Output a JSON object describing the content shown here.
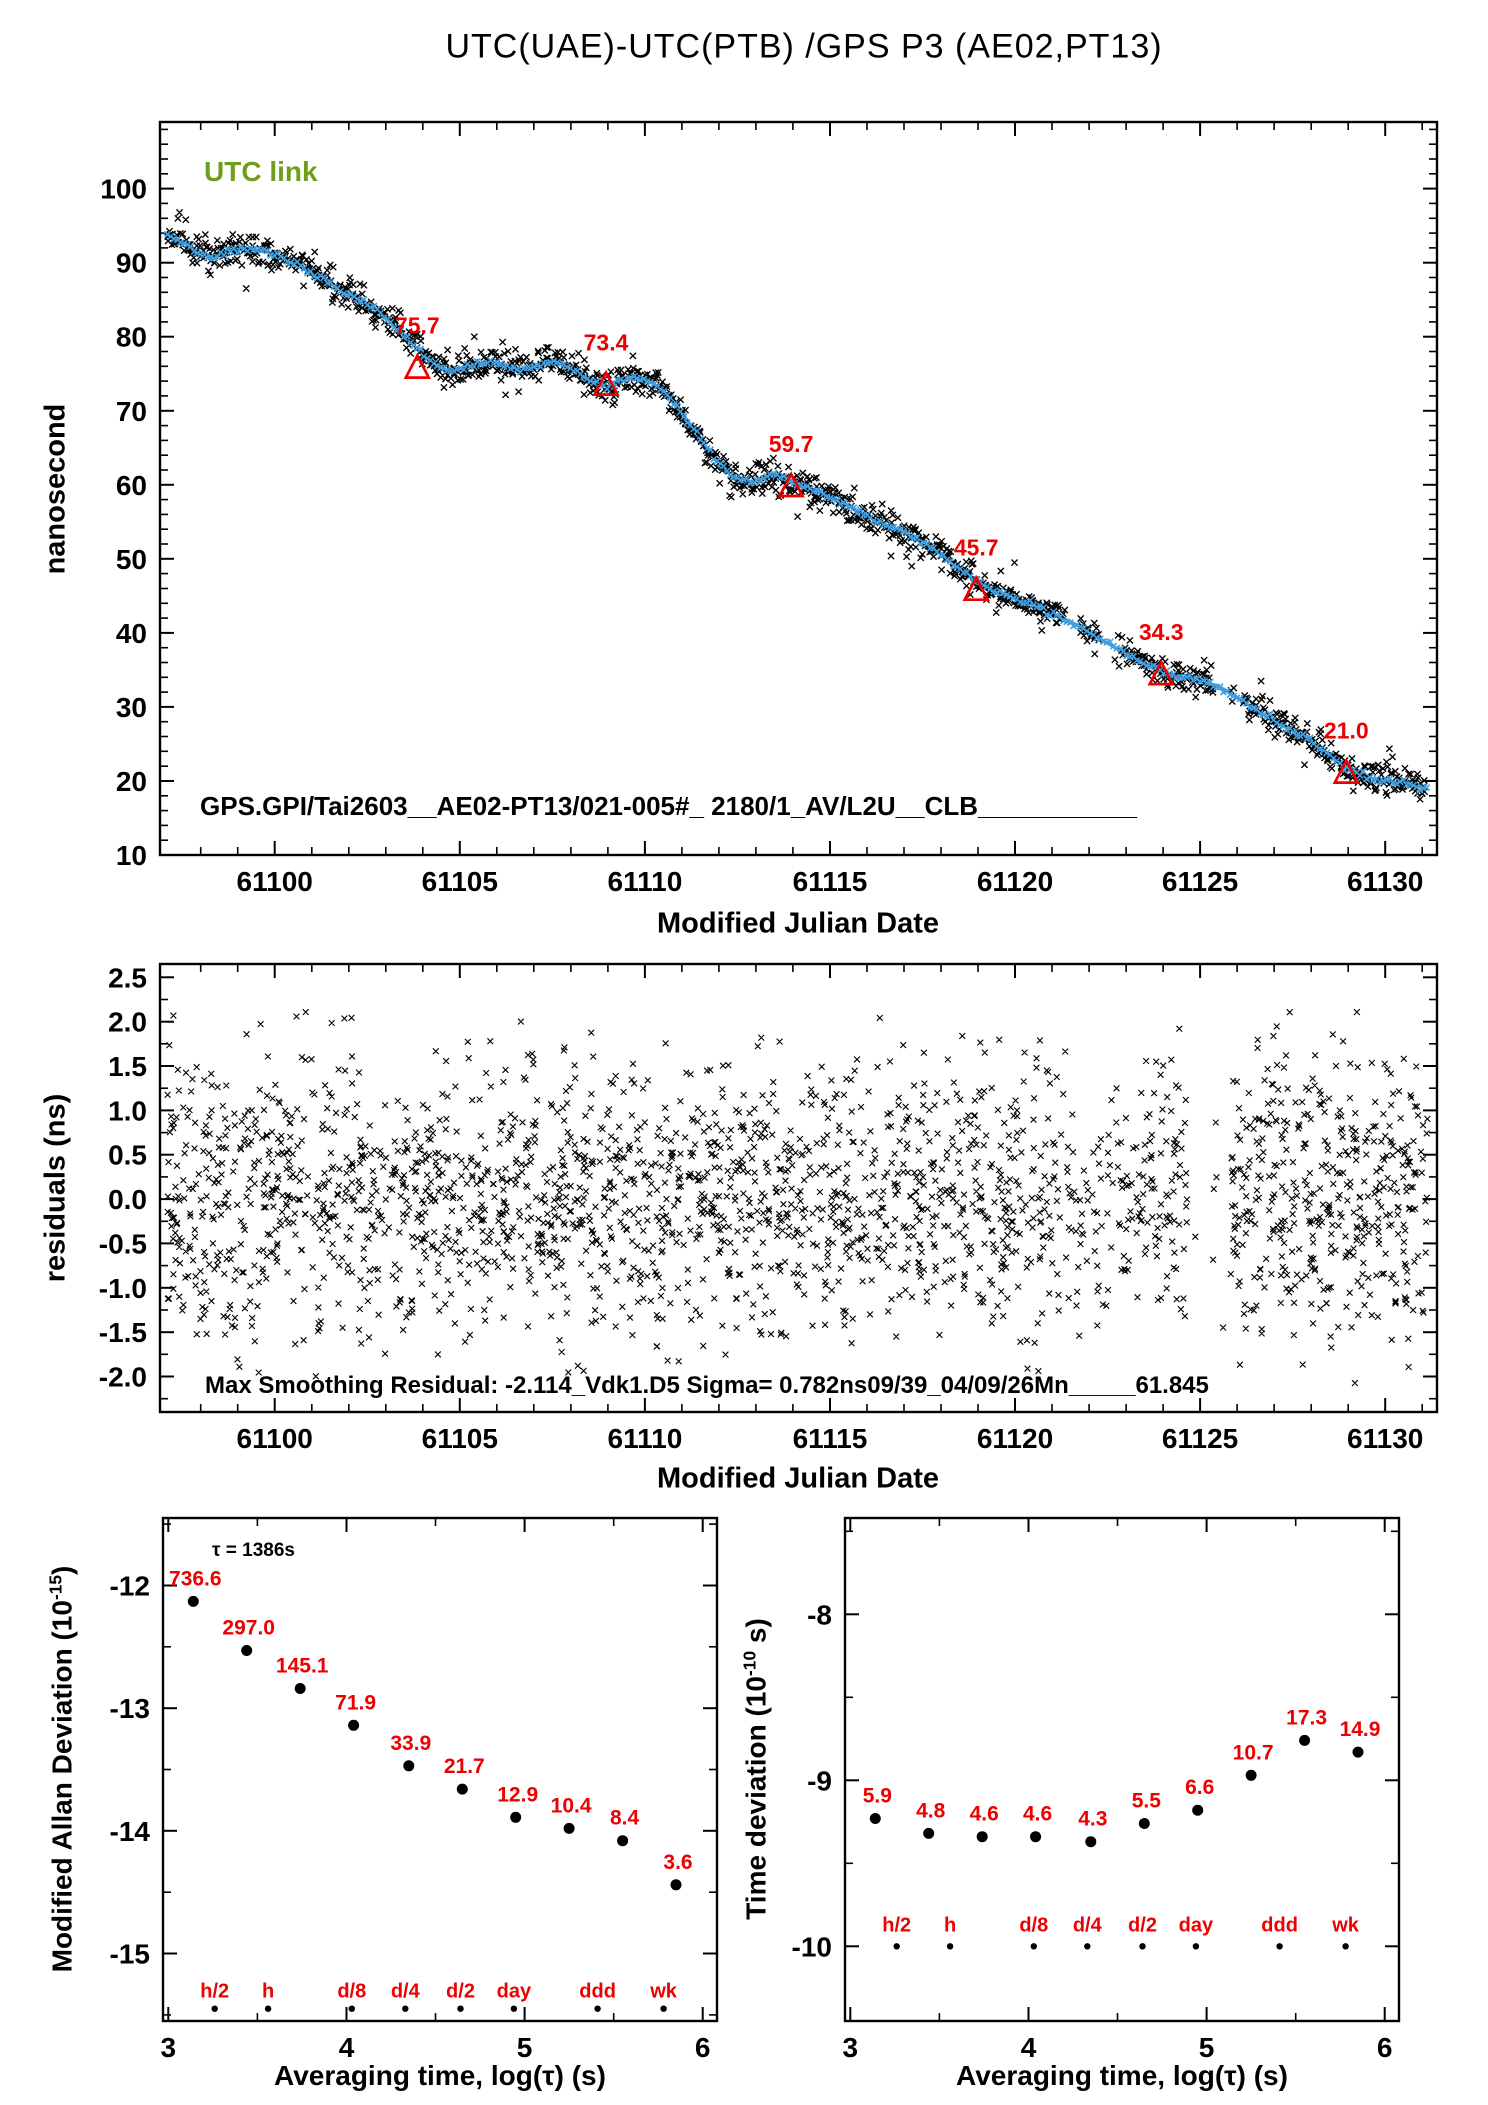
{
  "title": "UTC(UAE)-UTC(PTB)  /GPS  P3  (AE02,PT13)",
  "colors": {
    "background": "#ffffff",
    "axis_black": "#000000",
    "red": "#ee0000",
    "line_blue": "#3f9fe0",
    "utc_link_green": "#6f9d1c"
  },
  "chart_data": [
    {
      "id": "main",
      "type": "scatter",
      "title": "UTC(UAE)-UTC(PTB)  /GPS  P3  (AE02,PT13)",
      "legend_note": "UTC link",
      "footer": "GPS.GPI/Tai2603__AE02-PT13/021-005#_  2180/1_AV/L2U__CLB___________",
      "xlabel": "Modified Julian Date",
      "ylabel": "nanosecond",
      "xlim": [
        61096.9,
        61131.4
      ],
      "ylim": [
        10,
        109
      ],
      "grid": false,
      "xticks": [
        [
          61100,
          "61100"
        ],
        [
          61105,
          "61105"
        ],
        [
          61110,
          "61110"
        ],
        [
          61115,
          "61115"
        ],
        [
          61120,
          "61120"
        ],
        [
          61125,
          "61125"
        ],
        [
          61130,
          "61130"
        ]
      ],
      "yticks": [
        [
          10,
          "10"
        ],
        [
          20,
          "20"
        ],
        [
          30,
          "30"
        ],
        [
          40,
          "40"
        ],
        [
          50,
          "50"
        ],
        [
          60,
          "60"
        ],
        [
          70,
          "70"
        ],
        [
          80,
          "80"
        ],
        [
          90,
          "90"
        ],
        [
          100,
          "100"
        ]
      ],
      "smooth_x": [
        61097.0,
        61097.5,
        61098.0,
        61098.4,
        61098.8,
        61099.3,
        61099.8,
        61100.3,
        61100.8,
        61101.3,
        61101.8,
        61102.3,
        61102.8,
        61103.3,
        61103.8,
        61104.2,
        61104.6,
        61105.0,
        61105.4,
        61105.8,
        61106.2,
        61106.6,
        61107.0,
        61107.4,
        61107.8,
        61108.2,
        61108.6,
        61109.0,
        61109.4,
        61109.8,
        61110.2,
        61110.6,
        61111.0,
        61111.4,
        61111.8,
        61112.2,
        61112.6,
        61113.0,
        61113.4,
        61113.8,
        61114.2,
        61114.6,
        61115.0,
        61115.5,
        61116.0,
        61116.5,
        61117.0,
        61117.5,
        61118.0,
        61118.5,
        61119.0,
        61119.5,
        61120.0,
        61120.5,
        61121.0,
        61121.5,
        61122.0,
        61122.5,
        61123.0,
        61123.5,
        61124.0,
        61124.5,
        61125.0,
        61125.5,
        61126.0,
        61126.5,
        61127.0,
        61127.5,
        61128.0,
        61128.5,
        61129.0,
        61129.5,
        61130.0,
        61130.5,
        61131.0
      ],
      "smooth_y": [
        94.0,
        92.8,
        91.3,
        90.8,
        91.6,
        91.9,
        91.4,
        90.6,
        89.3,
        87.8,
        86.3,
        85.0,
        83.4,
        81.2,
        78.6,
        76.6,
        75.4,
        75.4,
        76.2,
        76.6,
        76.2,
        75.6,
        75.9,
        76.5,
        76.3,
        75.2,
        73.8,
        73.3,
        74.2,
        74.5,
        73.8,
        72.1,
        69.7,
        67.0,
        64.0,
        61.8,
        60.4,
        60.5,
        61.3,
        60.9,
        59.8,
        59.2,
        58.4,
        57.2,
        55.8,
        54.6,
        53.6,
        52.3,
        50.7,
        48.8,
        46.8,
        45.6,
        44.7,
        43.8,
        42.7,
        41.5,
        40.1,
        38.6,
        37.1,
        35.9,
        34.7,
        34.0,
        33.5,
        32.8,
        31.3,
        29.6,
        28.1,
        26.8,
        25.3,
        23.4,
        21.5,
        20.5,
        20.0,
        19.6,
        19.2
      ],
      "scatter_sigma_ns": 1.05,
      "sparse_zones": [
        [
          61121.2,
          61121.75
        ],
        [
          61122.3,
          61122.85
        ],
        [
          61125.35,
          61126.15
        ]
      ],
      "markers": [
        {
          "mjd": 61103.85,
          "ns": 75.7
        },
        {
          "mjd": 61108.95,
          "ns": 73.4
        },
        {
          "mjd": 61113.95,
          "ns": 59.7
        },
        {
          "mjd": 61118.95,
          "ns": 45.7
        },
        {
          "mjd": 61123.95,
          "ns": 34.3
        },
        {
          "mjd": 61128.95,
          "ns": 21.0
        }
      ]
    },
    {
      "id": "residuals",
      "type": "scatter",
      "footer": "Max Smoothing Residual: -2.114_Vdk1.D5  Sigma= 0.782ns09/39_04/09/26Mn_____61.845",
      "xlabel": "Modified Julian Date",
      "ylabel": "residuals (ns)",
      "xlim": [
        61096.9,
        61131.4
      ],
      "ylim": [
        -2.4,
        2.65
      ],
      "grid": false,
      "xticks": [
        [
          61100,
          "61100"
        ],
        [
          61105,
          "61105"
        ],
        [
          61110,
          "61110"
        ],
        [
          61115,
          "61115"
        ],
        [
          61120,
          "61120"
        ],
        [
          61125,
          "61125"
        ],
        [
          61130,
          "61130"
        ]
      ],
      "yticks": [
        [
          2.5,
          "2.5"
        ],
        [
          2,
          "2.0"
        ],
        [
          1.5,
          "1.5"
        ],
        [
          1,
          "1.0"
        ],
        [
          0.5,
          "0.5"
        ],
        [
          0,
          "0.0"
        ],
        [
          -0.5,
          "-0.5"
        ],
        [
          -1,
          "-1.0"
        ],
        [
          -1.5,
          "-1.5"
        ],
        [
          -2,
          "-2.0"
        ]
      ],
      "sigma_ns": 0.782,
      "max_residual": -2.114,
      "clip_high": 2.15,
      "n_points": 2600,
      "gap_zones": [
        [
          61124.65,
          61125.85
        ]
      ],
      "thin_zones": [
        [
          61120.9,
          61123.3
        ]
      ]
    },
    {
      "id": "mdev",
      "type": "scatter",
      "ylabel_parts": {
        "prefix": "Modified Allan Deviation (10",
        "exp": "-15",
        "suffix": ")"
      },
      "xlabel": "Averaging time, log(τ) (s)",
      "tau_note": "τ = 1386s",
      "xlim": [
        2.97,
        6.08
      ],
      "ylim": [
        -15.55,
        -11.45
      ],
      "grid": false,
      "xticks": [
        [
          3,
          "3"
        ],
        [
          4,
          "4"
        ],
        [
          5,
          "5"
        ],
        [
          6,
          "6"
        ]
      ],
      "yticks": [
        [
          -12,
          "-12"
        ],
        [
          -13,
          "-13"
        ],
        [
          -14,
          "-14"
        ],
        [
          -15,
          "-15"
        ]
      ],
      "points_x": [
        3.14,
        3.44,
        3.74,
        4.04,
        4.35,
        4.65,
        4.95,
        5.25,
        5.55,
        5.85
      ],
      "values": [
        736.6,
        297.0,
        145.1,
        71.9,
        33.9,
        21.7,
        12.9,
        10.4,
        8.4,
        3.6
      ],
      "log10_y": [
        -12.13,
        -12.53,
        -12.84,
        -13.14,
        -13.47,
        -13.66,
        -13.89,
        -13.98,
        -14.08,
        -14.44
      ],
      "cat_labels": [
        "h/2",
        "h",
        "d/8",
        "d/4",
        "d/2",
        "day",
        "ddd",
        "wk"
      ],
      "cat_x": [
        3.26,
        3.56,
        4.03,
        4.33,
        4.64,
        4.94,
        5.41,
        5.78
      ],
      "cat_label_y": -15.3,
      "cat_dot_y": -15.45
    },
    {
      "id": "tdev",
      "type": "scatter",
      "ylabel_parts": {
        "prefix": "Time deviation (10",
        "exp": "-10",
        "suffix": " s)"
      },
      "xlabel": "Averaging time, log(τ) (s)",
      "xlim": [
        2.97,
        6.08
      ],
      "ylim": [
        -10.45,
        -7.42
      ],
      "grid": false,
      "xticks": [
        [
          3,
          "3"
        ],
        [
          4,
          "4"
        ],
        [
          5,
          "5"
        ],
        [
          6,
          "6"
        ]
      ],
      "yticks": [
        [
          -8,
          "-8"
        ],
        [
          -9,
          "-9"
        ],
        [
          -10,
          "-10"
        ]
      ],
      "points_x": [
        3.14,
        3.44,
        3.74,
        4.04,
        4.35,
        4.65,
        4.95,
        5.25,
        5.55,
        5.85
      ],
      "values": [
        5.9,
        4.8,
        4.6,
        4.6,
        4.3,
        5.5,
        6.6,
        10.7,
        17.3,
        14.9
      ],
      "log10_y": [
        -9.23,
        -9.32,
        -9.34,
        -9.34,
        -9.37,
        -9.26,
        -9.18,
        -8.97,
        -8.76,
        -8.83
      ],
      "cat_labels": [
        "h/2",
        "h",
        "d/8",
        "d/4",
        "d/2",
        "day",
        "ddd",
        "wk"
      ],
      "cat_x": [
        3.26,
        3.56,
        4.03,
        4.33,
        4.64,
        4.94,
        5.41,
        5.78
      ],
      "cat_label_y": -9.87,
      "cat_dot_y": -10.0
    }
  ]
}
